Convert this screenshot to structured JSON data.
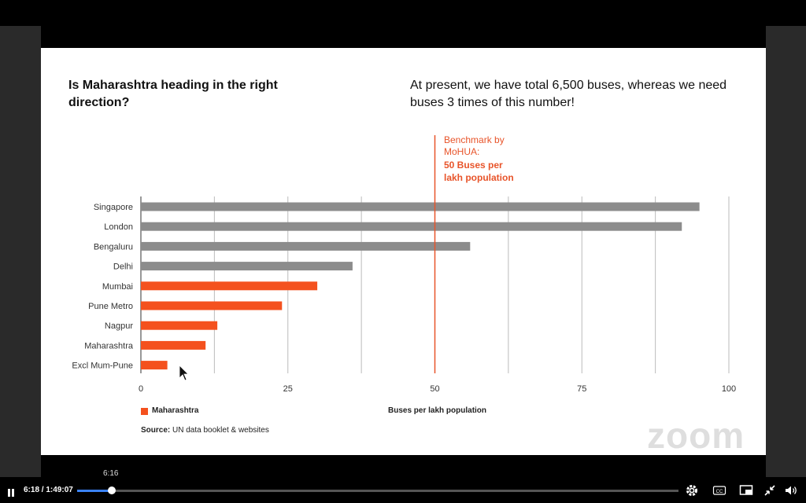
{
  "slide": {
    "title": "Is Maharashtra heading in the right direction?",
    "subtitle": "At present, we have total 6,500 buses, whereas we need buses 3 times of this number!",
    "benchmark": {
      "line1": "Benchmark by",
      "line2": "MoHUA:",
      "line3": "50 Buses per",
      "line4": "lakh population"
    },
    "legend_label": "Maharashtra",
    "source_label": "Source:",
    "source_text": " UN data booklet & websites",
    "watermark": "zoom"
  },
  "chart_data": {
    "type": "bar",
    "orientation": "horizontal",
    "categories": [
      "Singapore",
      "London",
      "Bengaluru",
      "Delhi",
      "Mumbai",
      "Pune Metro",
      "Nagpur",
      "Maharashtra",
      "Excl Mum-Pune"
    ],
    "values": [
      95,
      92,
      56,
      36,
      30,
      24,
      13,
      11,
      4.5
    ],
    "bar_colors": [
      "#8c8c8c",
      "#8c8c8c",
      "#8c8c8c",
      "#8c8c8c",
      "#f4511e",
      "#f4511e",
      "#f4511e",
      "#f4511e",
      "#f4511e"
    ],
    "xlabel": "Buses per lakh population",
    "xlim": [
      0,
      100
    ],
    "x_ticks": [
      0,
      25,
      50,
      75,
      100
    ],
    "reference_line": {
      "value": 50,
      "color": "#e8542a"
    },
    "legend": [
      {
        "name": "Maharashtra",
        "color": "#f4511e"
      }
    ],
    "grid": true
  },
  "player": {
    "current_time": "6:18",
    "duration": "/ 1:49:07",
    "hover_time": "6:16",
    "progress": 0.058,
    "controls": [
      "pause-icon",
      "settings-icon",
      "captions-icon",
      "picture-in-picture-icon",
      "exit-fullscreen-icon",
      "volume-icon"
    ],
    "cc_label": "CC"
  }
}
